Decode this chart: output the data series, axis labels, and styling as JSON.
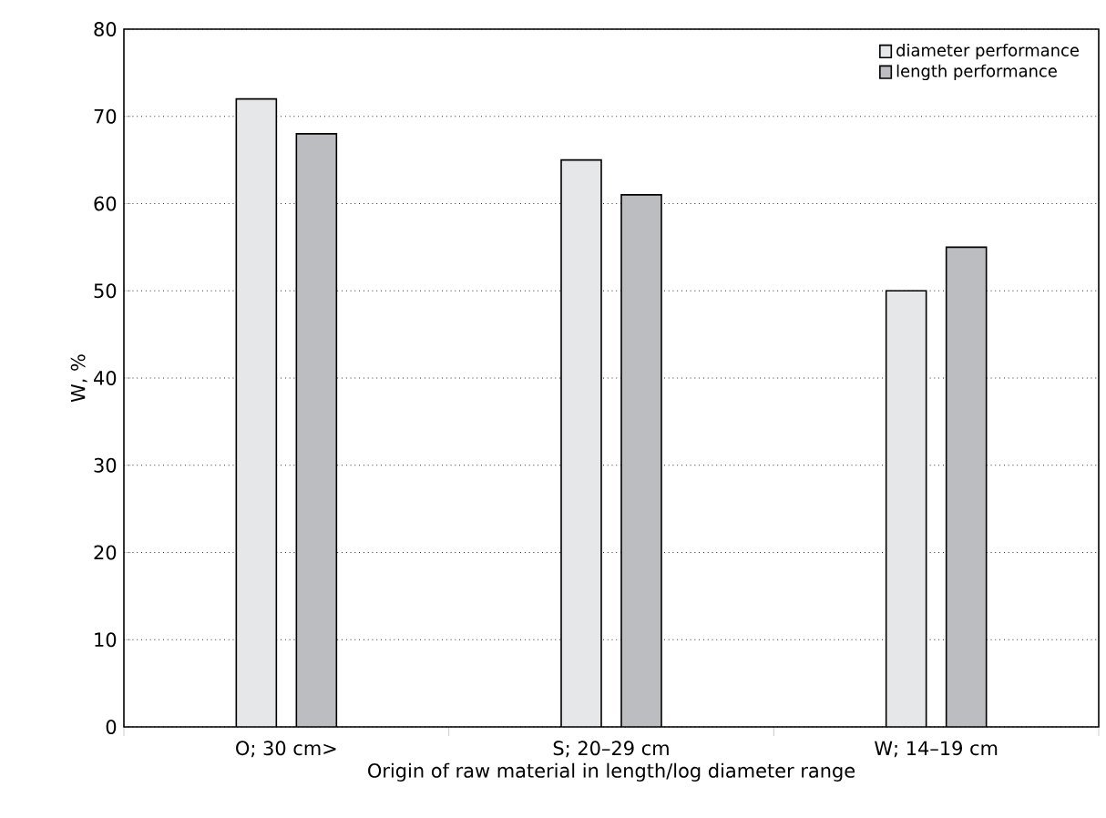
{
  "chart_data": {
    "type": "bar",
    "xlabel": "Origin of raw material in length/log diameter range",
    "ylabel": "W, %",
    "categories": [
      "O; 30 cm>",
      "S; 20–29 cm",
      "W; 14–19 cm"
    ],
    "series": [
      {
        "name": "diameter performance",
        "color": "#e6e7e8",
        "values": [
          72,
          65,
          50
        ]
      },
      {
        "name": "length performance",
        "color": "#bcbdc0",
        "values": [
          68,
          61,
          55
        ]
      }
    ],
    "ylim": [
      0,
      80
    ],
    "yticks": [
      0,
      10,
      20,
      30,
      40,
      50,
      60,
      70,
      80
    ],
    "grid": "y",
    "legend": "top right"
  }
}
